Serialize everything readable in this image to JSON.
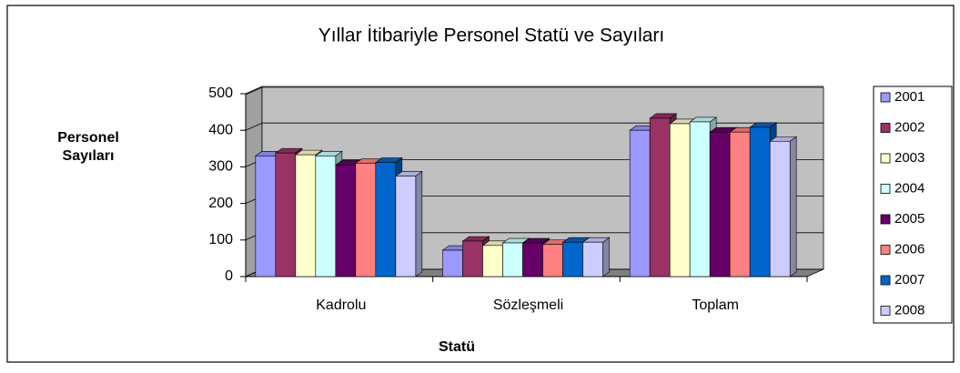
{
  "chart_data": {
    "type": "bar3d",
    "title": "Yıllar İtibariyle Personel Statü ve Sayıları",
    "ylabel": [
      "Personel",
      "Sayıları"
    ],
    "xlabel": "Statü",
    "categories": [
      "Kadrolu",
      "Sözleşmeli",
      "Toplam"
    ],
    "series": [
      {
        "name": "2001",
        "color": "#9999ff",
        "values": [
          330,
          72,
          400
        ]
      },
      {
        "name": "2002",
        "color": "#993366",
        "values": [
          338,
          97,
          433
        ]
      },
      {
        "name": "2003",
        "color": "#ffffcc",
        "values": [
          333,
          85,
          418
        ]
      },
      {
        "name": "2004",
        "color": "#ccffff",
        "values": [
          330,
          92,
          423
        ]
      },
      {
        "name": "2005",
        "color": "#660066",
        "values": [
          305,
          92,
          395
        ]
      },
      {
        "name": "2006",
        "color": "#ff8080",
        "values": [
          310,
          88,
          395
        ]
      },
      {
        "name": "2007",
        "color": "#0066cc",
        "values": [
          312,
          94,
          408
        ]
      },
      {
        "name": "2008",
        "color": "#ccccff",
        "values": [
          275,
          94,
          370
        ]
      }
    ],
    "ylim": [
      0,
      500
    ],
    "yticks": [
      0,
      100,
      200,
      300,
      400,
      500
    ],
    "grid": true,
    "legend": "right"
  }
}
